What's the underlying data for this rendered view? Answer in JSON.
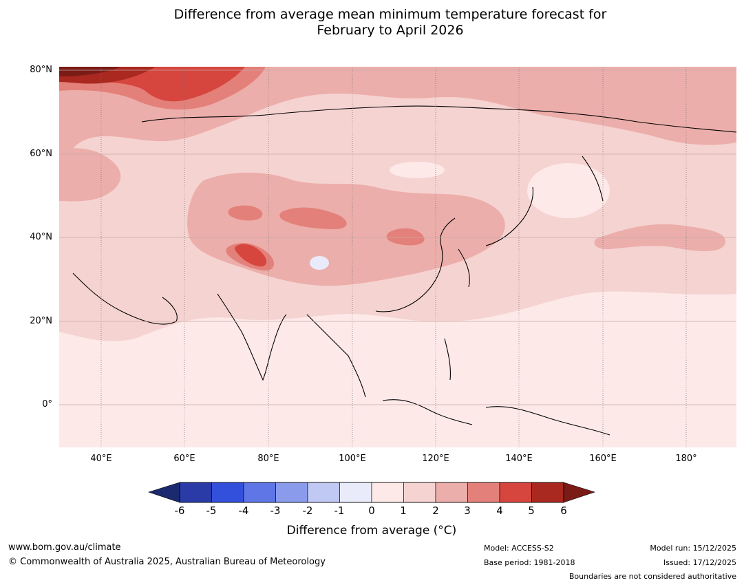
{
  "title": {
    "line1": "Difference from average mean minimum temperature forecast for",
    "line2": "February to April 2026"
  },
  "map": {
    "lat_labels": [
      "80°N",
      "60°N",
      "40°N",
      "20°N",
      "0°"
    ],
    "lon_labels": [
      "40°E",
      "60°E",
      "80°E",
      "100°E",
      "120°E",
      "140°E",
      "160°E",
      "180°"
    ]
  },
  "colorbar": {
    "ticks": [
      "-6",
      "-5",
      "-4",
      "-3",
      "-2",
      "-1",
      "0",
      "1",
      "2",
      "3",
      "4",
      "5",
      "6"
    ],
    "label": "Difference from average (°C)",
    "colors": {
      "below_min": "#1b2a6e",
      "c_m6_m5": "#2a3ba8",
      "c_m5_m4": "#3350dc",
      "c_m4_m3": "#5f76e6",
      "c_m3_m2": "#8a9bec",
      "c_m2_m1": "#c0c8f4",
      "c_m1_0": "#e9ebfa",
      "c_0_1": "#fce9e8",
      "c_1_2": "#f5d3d1",
      "c_2_3": "#ecaeab",
      "c_3_4": "#e4807a",
      "c_4_5": "#d6463e",
      "c_5_6": "#a9281f",
      "above_max": "#7a1b16"
    }
  },
  "footer": {
    "website": "www.bom.gov.au/climate",
    "copyright": "© Commonwealth of Australia 2025, Australian Bureau of Meteorology",
    "model": "Model: ACCESS-S2",
    "base_period": "Base period: 1981-2018",
    "model_run": "Model run: 15/12/2025",
    "issued": "Issued: 17/12/2025",
    "disclaimer": "Boundaries are not considered authoritative"
  }
}
